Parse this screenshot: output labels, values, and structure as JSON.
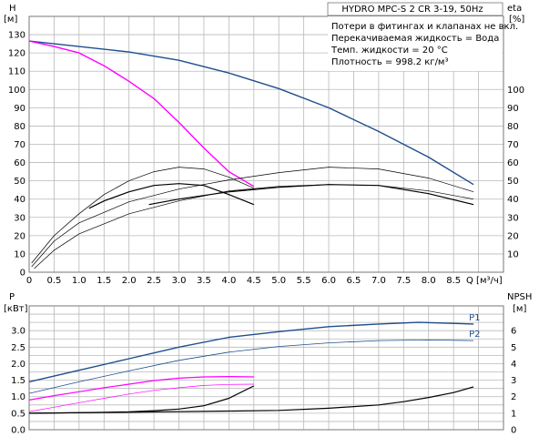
{
  "chart_data": [
    {
      "type": "line",
      "panel": "upper",
      "title": "HYDRO MPC-S 2 CR 3-19, 50Hz",
      "notes": [
        "Потери в фитингах и клапанах не вкл.",
        "Перекачиваемая жидкость = Вода",
        "Темп. жидкости = 20 °C",
        "Плотность = 998.2 кг/м³"
      ],
      "left_axis": {
        "label": "H",
        "unit": "[м]",
        "range": [
          0,
          140
        ],
        "ticks": [
          0,
          10,
          20,
          30,
          40,
          50,
          60,
          70,
          80,
          90,
          100,
          110,
          120,
          130
        ]
      },
      "right_axis": {
        "label": "eta",
        "unit": "[%]",
        "range": [
          0,
          140
        ],
        "ticks": [
          10,
          20,
          30,
          40,
          50,
          60,
          70,
          80,
          90,
          100
        ]
      },
      "x_axis": {
        "label": "Q [м³/ч]",
        "range": [
          0,
          9.5
        ],
        "ticks": [
          "0",
          "0.5",
          "1.0",
          "1.5",
          "2.0",
          "2.5",
          "3.0",
          "3.5",
          "4.0",
          "4.5",
          "5.0",
          "5.5",
          "6.0",
          "6.5",
          "7.0",
          "7.5",
          "8.0",
          "8.5"
        ]
      },
      "grid": true,
      "series": [
        {
          "color": "#1f4e8c",
          "width": 1.4,
          "axis": "left",
          "points": [
            [
              0,
              126.5
            ],
            [
              1,
              123.5
            ],
            [
              2,
              120.5
            ],
            [
              3,
              116
            ],
            [
              4,
              109
            ],
            [
              5,
              100.5
            ],
            [
              6,
              90
            ],
            [
              7,
              77
            ],
            [
              8,
              63
            ],
            [
              8.9,
              48
            ]
          ]
        },
        {
          "color": "#ff00ff",
          "width": 1.4,
          "axis": "left",
          "points": [
            [
              0,
              126.5
            ],
            [
              0.5,
              123.5
            ],
            [
              1,
              120
            ],
            [
              1.5,
              113
            ],
            [
              2,
              104.5
            ],
            [
              2.5,
              95
            ],
            [
              3,
              82
            ],
            [
              3.5,
              68
            ],
            [
              4,
              55
            ],
            [
              4.5,
              47
            ]
          ]
        },
        {
          "color": "#000000",
          "width": 1.2,
          "axis": "right",
          "points": [
            [
              1.2,
              35
            ],
            [
              1.5,
              39
            ],
            [
              2,
              44
            ],
            [
              2.5,
              47.5
            ],
            [
              3,
              48.5
            ],
            [
              3.5,
              47.5
            ],
            [
              4,
              42.5
            ],
            [
              4.5,
              37
            ]
          ]
        },
        {
          "color": "#000000",
          "width": 1.2,
          "axis": "right",
          "points": [
            [
              2.4,
              37
            ],
            [
              3,
              40
            ],
            [
              4,
              44
            ],
            [
              5,
              46.5
            ],
            [
              6,
              48
            ],
            [
              7,
              47.5
            ],
            [
              8,
              43
            ],
            [
              8.9,
              37
            ]
          ]
        },
        {
          "color": "#000000",
          "width": 0.7,
          "axis": "right",
          "points": [
            [
              0.05,
              5
            ],
            [
              0.5,
              20
            ],
            [
              1,
              32
            ],
            [
              1.5,
              42.5
            ],
            [
              2,
              50
            ],
            [
              2.5,
              55
            ],
            [
              3,
              57.5
            ],
            [
              3.5,
              56.5
            ],
            [
              4,
              52
            ],
            [
              4.5,
              46
            ]
          ]
        },
        {
          "color": "#000000",
          "width": 0.7,
          "axis": "right",
          "points": [
            [
              0.05,
              3
            ],
            [
              0.5,
              17
            ],
            [
              1,
              27
            ],
            [
              2,
              38.5
            ],
            [
              3,
              45.5
            ],
            [
              4,
              50.5
            ],
            [
              5,
              54.5
            ],
            [
              6,
              57.5
            ],
            [
              7,
              56.5
            ],
            [
              8,
              51.5
            ],
            [
              8.9,
              44
            ]
          ]
        },
        {
          "color": "#000000",
          "width": 0.7,
          "axis": "right",
          "points": [
            [
              0.1,
              2
            ],
            [
              0.5,
              12
            ],
            [
              1,
              21
            ],
            [
              2,
              32
            ],
            [
              3,
              39
            ],
            [
              4,
              44.5
            ],
            [
              5,
              47
            ],
            [
              6,
              48
            ],
            [
              7,
              47.5
            ],
            [
              8,
              44.5
            ],
            [
              8.9,
              40
            ]
          ]
        }
      ]
    },
    {
      "type": "line",
      "panel": "lower",
      "left_axis": {
        "label": "P",
        "unit": "[кВт]",
        "range": [
          0,
          3.75
        ],
        "ticks": [
          "0.0",
          "0.5",
          "1.0",
          "1.5",
          "2.0",
          "2.5",
          "3.0"
        ]
      },
      "right_axis": {
        "label": "NPSH",
        "unit": "[м]",
        "range": [
          0,
          7.5
        ],
        "ticks": [
          "0",
          "1",
          "2",
          "3",
          "4",
          "5",
          "6"
        ]
      },
      "grid": true,
      "series": [
        {
          "name": "P1",
          "color": "#1f4e8c",
          "width": 1.4,
          "axis": "left",
          "points": [
            [
              0,
              1.45
            ],
            [
              1,
              1.8
            ],
            [
              2,
              2.15
            ],
            [
              3,
              2.5
            ],
            [
              4,
              2.8
            ],
            [
              5,
              2.97
            ],
            [
              6,
              3.12
            ],
            [
              7,
              3.2
            ],
            [
              7.8,
              3.25
            ],
            [
              8.9,
              3.2
            ]
          ]
        },
        {
          "name": "P2",
          "color": "#1f4e8c",
          "width": 0.8,
          "axis": "left",
          "points": [
            [
              0,
              1.1
            ],
            [
              1,
              1.45
            ],
            [
              2,
              1.78
            ],
            [
              3,
              2.1
            ],
            [
              4,
              2.35
            ],
            [
              5,
              2.52
            ],
            [
              6,
              2.63
            ],
            [
              7,
              2.7
            ],
            [
              8,
              2.72
            ],
            [
              8.9,
              2.7
            ]
          ]
        },
        {
          "color": "#ff00ff",
          "width": 1.2,
          "axis": "left",
          "points": [
            [
              0,
              0.9
            ],
            [
              0.5,
              1.03
            ],
            [
              1,
              1.15
            ],
            [
              1.5,
              1.27
            ],
            [
              2,
              1.38
            ],
            [
              2.5,
              1.49
            ],
            [
              3,
              1.56
            ],
            [
              3.5,
              1.6
            ],
            [
              4,
              1.61
            ],
            [
              4.5,
              1.6
            ]
          ]
        },
        {
          "color": "#ff00ff",
          "width": 0.7,
          "axis": "left",
          "points": [
            [
              0,
              0.55
            ],
            [
              0.5,
              0.68
            ],
            [
              1,
              0.82
            ],
            [
              1.5,
              0.95
            ],
            [
              2,
              1.08
            ],
            [
              2.5,
              1.19
            ],
            [
              3,
              1.27
            ],
            [
              3.5,
              1.34
            ],
            [
              4,
              1.37
            ],
            [
              4.5,
              1.38
            ]
          ]
        },
        {
          "color": "#000000",
          "width": 1.2,
          "axis": "right",
          "points": [
            [
              0,
              1
            ],
            [
              1,
              1.03
            ],
            [
              2,
              1.08
            ],
            [
              2.5,
              1.15
            ],
            [
              3,
              1.25
            ],
            [
              3.5,
              1.45
            ],
            [
              4,
              1.9
            ],
            [
              4.5,
              2.65
            ]
          ]
        },
        {
          "color": "#000000",
          "width": 1.2,
          "axis": "right",
          "points": [
            [
              0,
              1
            ],
            [
              2,
              1.06
            ],
            [
              4,
              1.13
            ],
            [
              5,
              1.17
            ],
            [
              6,
              1.3
            ],
            [
              7,
              1.5
            ],
            [
              7.5,
              1.7
            ],
            [
              8,
              1.95
            ],
            [
              8.5,
              2.25
            ],
            [
              8.9,
              2.6
            ]
          ]
        }
      ],
      "labels": [
        {
          "text": "P1",
          "series": "P1"
        },
        {
          "text": "P2",
          "series": "P2"
        }
      ]
    }
  ]
}
